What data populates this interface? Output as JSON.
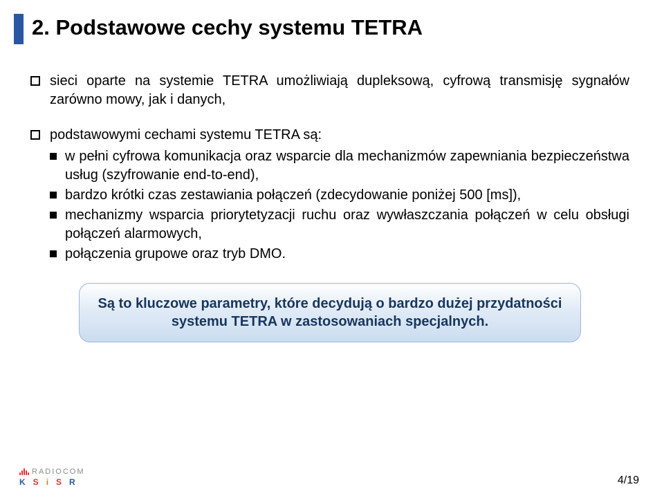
{
  "colors": {
    "accent_bar": "#2957a4",
    "callout_text": "#17365d",
    "callout_border": "#9ab7de",
    "callout_grad_top": "#ffffff",
    "callout_grad_mid": "#e1ebf7",
    "callout_grad_bot": "#cbdcf0",
    "logo_red": "#d9322e",
    "logo_grey": "#8a8a8a",
    "logo_blue": "#2957a4",
    "logo_dark": "#3a3a3a"
  },
  "title": "2. Podstawowe cechy systemu TETRA",
  "bullets": [
    {
      "text": "sieci oparte na systemie TETRA umożliwiają dupleksową, cyfrową transmisję sygnałów zarówno mowy, jak i danych,",
      "sub": []
    },
    {
      "text": "podstawowymi cechami systemu TETRA są:",
      "sub": [
        "w pełni cyfrowa komunikacja oraz wsparcie dla mechanizmów zapewniania bezpieczeństwa usług (szyfrowanie end-to-end),",
        "bardzo krótki czas zestawiania połączeń (zdecydowanie poniżej 500 [ms]),",
        "mechanizmy wsparcia priorytetyzacji ruchu oraz wywłaszczania połączeń w celu obsługi połączeń alarmowych,",
        "połączenia grupowe oraz tryb DMO."
      ]
    }
  ],
  "callout": "Są to kluczowe parametry, które decydują o bardzo dużej przydatności systemu TETRA w zastosowaniach specjalnych.",
  "footer": {
    "logo_top": "RADIOCOM",
    "logo_letters": [
      "K",
      "S",
      "i",
      "S",
      "R"
    ],
    "page": "4/19"
  }
}
